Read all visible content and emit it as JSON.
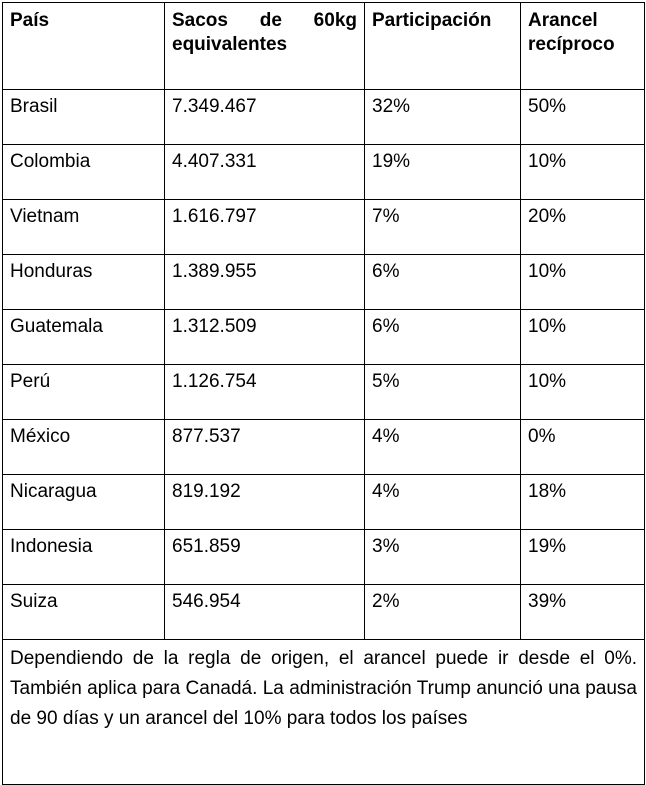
{
  "table": {
    "header": [
      "País",
      "Sacos de 60kg equivalentes",
      "Participación",
      "Arancel recíproco"
    ],
    "rows": [
      [
        "Brasil",
        "7.349.467",
        "32%",
        "50%"
      ],
      [
        "Colombia",
        "4.407.331",
        "19%",
        "10%"
      ],
      [
        "Vietnam",
        "1.616.797",
        "7%",
        "20%"
      ],
      [
        "Honduras",
        "1.389.955",
        "6%",
        "10%"
      ],
      [
        "Guatemala",
        "1.312.509",
        "6%",
        "10%"
      ],
      [
        "Perú",
        "1.126.754",
        "5%",
        "10%"
      ],
      [
        "México",
        "877.537",
        "4%",
        "0%"
      ],
      [
        "Nicaragua",
        "819.192",
        "4%",
        "18%"
      ],
      [
        "Indonesia",
        "651.859",
        "3%",
        "19%"
      ],
      [
        "Suiza",
        "546.954",
        "2%",
        "39%"
      ]
    ],
    "note": "Dependiendo de la regla de origen, el arancel puede ir desde el 0%. También aplica para Canadá. La administración Trump anunció una pausa de 90 días y un arancel del 10% para todos los países"
  }
}
